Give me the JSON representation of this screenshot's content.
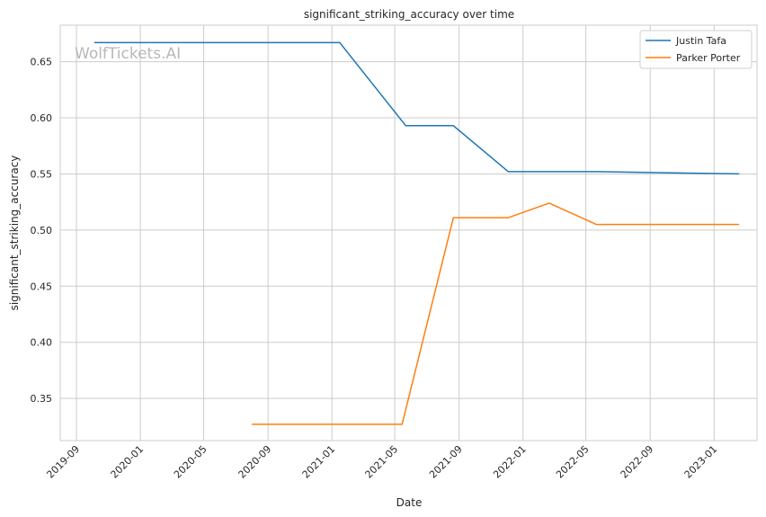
{
  "chart_data": {
    "type": "line",
    "title": "significant_striking_accuracy over time",
    "xlabel": "Date",
    "ylabel": "significant_striking_accuracy",
    "xlim": [
      "2019-08-01",
      "2023-03-24"
    ],
    "ylim": [
      0.3125,
      0.6825
    ],
    "x_ticks": [
      "2019-09",
      "2020-01",
      "2020-05",
      "2020-09",
      "2021-01",
      "2021-05",
      "2021-09",
      "2022-01",
      "2022-05",
      "2022-09",
      "2023-01"
    ],
    "y_ticks": [
      0.35,
      0.4,
      0.45,
      0.5,
      0.55,
      0.6,
      0.65
    ],
    "y_tick_labels": [
      "0.35",
      "0.40",
      "0.45",
      "0.50",
      "0.55",
      "0.60",
      "0.65"
    ],
    "grid": true,
    "legend_position": "top-right",
    "series": [
      {
        "name": "Justin Tafa",
        "color": "#1f77b4",
        "x": [
          "2019-10-05",
          "2021-01-16",
          "2021-05-22",
          "2021-08-21",
          "2021-12-04",
          "2022-05-21",
          "2023-02-18"
        ],
        "values": [
          0.667,
          0.667,
          0.593,
          0.593,
          0.552,
          0.552,
          0.55
        ]
      },
      {
        "name": "Parker Porter",
        "color": "#ff7f0e",
        "x": [
          "2020-08-01",
          "2021-05-15",
          "2021-08-21",
          "2021-12-04",
          "2022-02-20",
          "2022-05-21",
          "2023-02-18"
        ],
        "values": [
          0.327,
          0.327,
          0.511,
          0.511,
          0.524,
          0.505,
          0.505
        ]
      }
    ],
    "watermark": "WolfTickets.AI"
  }
}
